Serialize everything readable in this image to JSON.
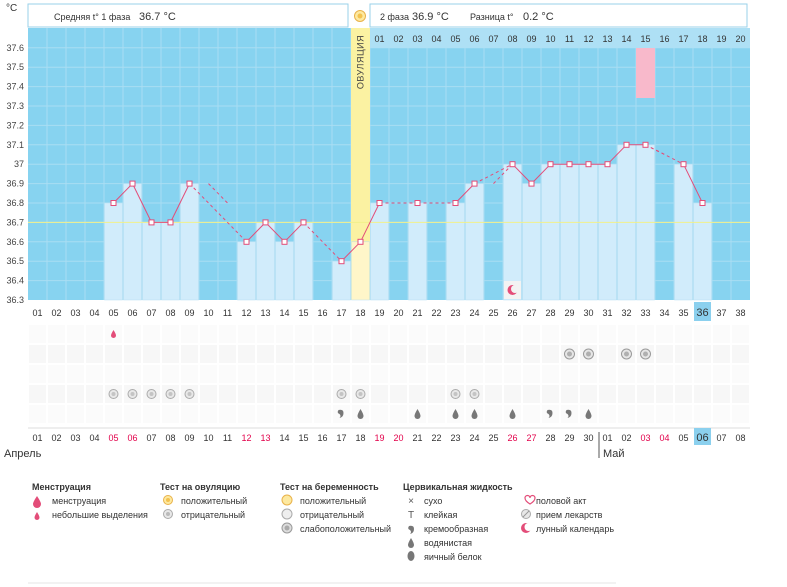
{
  "unit_label": "°C",
  "header": {
    "phase1_label": "Средняя t° 1 фаза",
    "phase1_value": "36.7 °C",
    "phase2_label": "2 фаза",
    "phase2_value": "36.9 °C",
    "diff_label": "Разница t°",
    "diff_value": "0.2 °C"
  },
  "ovulation_label": "ОВУЛЯЦИЯ",
  "colors": {
    "chart_bg": "#87d3f0",
    "bar": "#d1ecfb",
    "bar_border": "#b7dff3",
    "line": "#e34d79",
    "coverline": "#f2f08a",
    "ovulation": "#fbf2a2",
    "highlight": "#f8b9cb",
    "today": "#8bd0ee",
    "red_date": "#e2004a"
  },
  "chart_data": {
    "type": "bar",
    "title": "",
    "xlabel": "",
    "ylabel": "°C",
    "ylim": [
      36.3,
      37.6
    ],
    "y_ticks": [
      "36.3",
      "36.4",
      "36.5",
      "36.6",
      "36.7",
      "36.8",
      "36.9",
      "37",
      "37.1",
      "37.2",
      "37.3",
      "37.4",
      "37.5",
      "37.6"
    ],
    "categories": [
      "01",
      "02",
      "03",
      "04",
      "05",
      "06",
      "07",
      "08",
      "09",
      "10",
      "11",
      "12",
      "13",
      "14",
      "15",
      "16",
      "17",
      "18",
      "19",
      "20",
      "21",
      "22",
      "23",
      "24",
      "25",
      "26",
      "27",
      "28",
      "29",
      "30",
      "31",
      "32",
      "33",
      "34",
      "35",
      "36",
      "37",
      "38"
    ],
    "values": [
      null,
      null,
      null,
      null,
      36.8,
      36.9,
      36.7,
      36.7,
      36.9,
      null,
      null,
      36.6,
      36.7,
      36.6,
      36.7,
      null,
      36.5,
      36.6,
      36.8,
      null,
      36.8,
      null,
      36.8,
      36.9,
      null,
      37.0,
      36.9,
      37.0,
      37.0,
      37.0,
      37.0,
      37.1,
      37.1,
      null,
      37.0,
      36.8,
      null,
      null
    ],
    "coverline": 36.7,
    "ovulation_day": 18,
    "post_ovulation_labels": [
      "01",
      "02",
      "03",
      "04",
      "05",
      "06",
      "07",
      "08",
      "09",
      "10",
      "11",
      "12",
      "13",
      "14",
      "15",
      "16",
      "17",
      "18",
      "19",
      "20"
    ],
    "highlighted_day_label": "15",
    "today_day": "36"
  },
  "calendar": {
    "dates": [
      "01",
      "02",
      "03",
      "04",
      "05",
      "06",
      "07",
      "08",
      "09",
      "10",
      "11",
      "12",
      "13",
      "14",
      "15",
      "16",
      "17",
      "18",
      "19",
      "20",
      "21",
      "22",
      "23",
      "24",
      "25",
      "26",
      "27",
      "28",
      "29",
      "30",
      "01",
      "02",
      "03",
      "04",
      "05",
      "06",
      "07",
      "08"
    ],
    "red_idx": [
      4,
      5,
      11,
      12,
      18,
      19,
      25,
      26,
      32,
      33
    ],
    "today_idx": 35,
    "month1": "Апрель",
    "month2": "Май"
  },
  "symbols": {
    "menstruation_small": [
      5
    ],
    "pregnancy_weak": [
      29,
      30,
      32,
      33
    ],
    "ovulation_negative": [
      5,
      6,
      7,
      8,
      9,
      17,
      18,
      23,
      24
    ],
    "cervical_creamy": [
      17,
      28,
      29
    ],
    "cervical_watery": [
      18,
      21,
      23,
      24,
      26,
      30
    ],
    "moon": [
      26
    ]
  },
  "legend": {
    "menstruation": {
      "title": "Менструация",
      "items": [
        "менструация",
        "небольшие выделения"
      ]
    },
    "ovulation_test": {
      "title": "Тест на овуляцию",
      "items": [
        "положительный",
        "отрицательный"
      ]
    },
    "pregnancy_test": {
      "title": "Тест на беременность",
      "items": [
        "положительный",
        "отрицательный",
        "слабоположительный"
      ]
    },
    "cervical": {
      "title": "Цервикальная жидкость",
      "items": [
        "сухо",
        "клейкая",
        "кремообразная",
        "водянистая",
        "яичный белок"
      ]
    },
    "other": {
      "items": [
        "половой акт",
        "прием лекарств",
        "лунный календарь"
      ]
    }
  }
}
